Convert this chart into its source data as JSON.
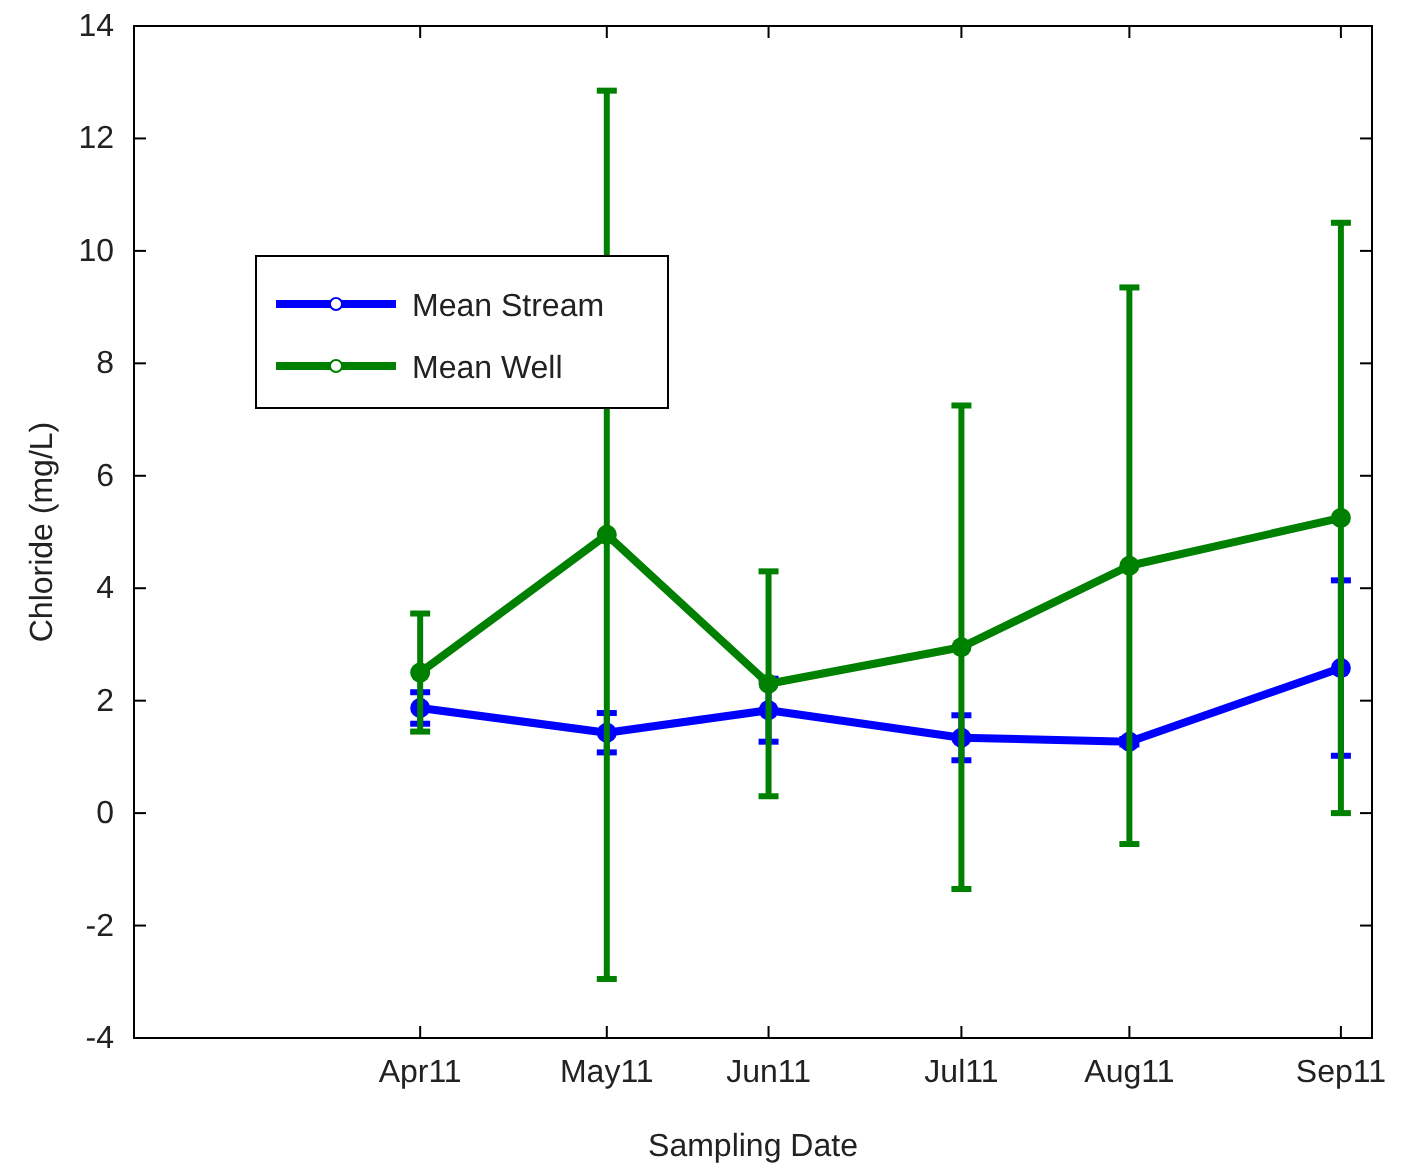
{
  "chart_data": {
    "type": "line",
    "xlabel": "Sampling Date",
    "ylabel": "Chloride (mg/L)",
    "x": [
      "2011-04-12",
      "2011-05-12",
      "2011-06-07",
      "2011-07-08",
      "2011-08-04",
      "2011-09-07"
    ],
    "series": [
      {
        "name": "Mean Stream",
        "color": "#0000ff",
        "values": [
          1.87,
          1.43,
          1.83,
          1.34,
          1.27,
          2.58
        ],
        "errors": [
          0.28,
          0.35,
          0.56,
          0.4,
          0.05,
          1.56
        ]
      },
      {
        "name": "Mean Well",
        "color": "#008000",
        "values": [
          2.5,
          4.95,
          2.3,
          2.95,
          4.4,
          5.25
        ],
        "errors": [
          1.05,
          7.9,
          2.0,
          4.3,
          4.95,
          5.25
        ]
      }
    ],
    "xlim": [
      "2011-02-25",
      "2011-09-12"
    ],
    "xticks": [
      {
        "value": "2011-04-12",
        "label": "Apr11"
      },
      {
        "value": "2011-05-12",
        "label": "May11"
      },
      {
        "value": "2011-06-07",
        "label": "Jun11"
      },
      {
        "value": "2011-07-08",
        "label": "Jul11"
      },
      {
        "value": "2011-08-04",
        "label": "Aug11"
      },
      {
        "value": "2011-09-07",
        "label": "Sep11"
      }
    ],
    "ylim": [
      -4,
      14
    ],
    "yticks": [
      -4,
      -2,
      0,
      2,
      4,
      6,
      8,
      10,
      12,
      14
    ],
    "legend": "top left",
    "marker": "circle",
    "line_style": "solid",
    "grid": false
  }
}
